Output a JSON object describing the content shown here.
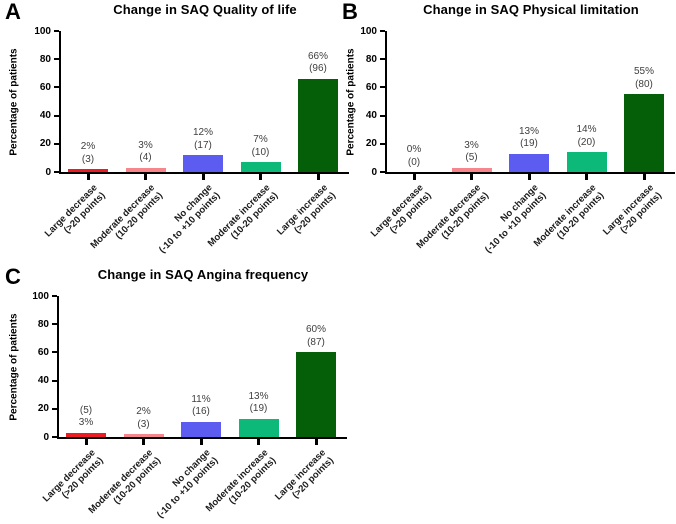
{
  "figure": {
    "background": "#ffffff",
    "axis_color": "#000000",
    "value_label_color": "#404040",
    "panel_letters": [
      "A",
      "B",
      "C"
    ]
  },
  "chart_data": [
    {
      "type": "bar",
      "panel_label": "A",
      "title": "Change in SAQ Quality of life",
      "xlabel": "",
      "ylabel": "Percentage of patients",
      "ylim": [
        0,
        100
      ],
      "yticks": [
        0,
        20,
        40,
        60,
        80,
        100
      ],
      "grid": false,
      "legend": false,
      "categories": [
        "Large decrease (>20 points)",
        "Moderate decrease (10-20 points)",
        "No change (-10 to +10 points)",
        "Moderate increase (10-20 points)",
        "Large increase (>20 points)"
      ],
      "category_lines": [
        [
          "Large decrease",
          "(>20 points)"
        ],
        [
          "Moderate decrease",
          "(10-20 points)"
        ],
        [
          "No change",
          "(-10 to +10 points)"
        ],
        [
          "Moderate increase",
          "(10-20 points)"
        ],
        [
          "Large increase",
          "(>20 points)"
        ]
      ],
      "values": [
        2,
        3,
        12,
        7,
        66
      ],
      "counts": [
        3,
        4,
        17,
        10,
        96
      ],
      "bar_labels": [
        [
          "2%",
          "(3)"
        ],
        [
          "3%",
          "(4)"
        ],
        [
          "12%",
          "(17)"
        ],
        [
          "7%",
          "(10)"
        ],
        [
          "66%",
          "(96)"
        ]
      ],
      "colors": [
        "#ed1c24",
        "#f6868b",
        "#5c5cf0",
        "#0db978",
        "#055e08"
      ]
    },
    {
      "type": "bar",
      "panel_label": "B",
      "title": "Change in SAQ Physical limitation",
      "xlabel": "",
      "ylabel": "Percentage of patients",
      "ylim": [
        0,
        100
      ],
      "yticks": [
        0,
        20,
        40,
        60,
        80,
        100
      ],
      "grid": false,
      "legend": false,
      "categories": [
        "Large decrease (>20 points)",
        "Moderate decrease (10-20 points)",
        "No change (-10 to +10 points)",
        "Moderate increase (10-20 points)",
        "Large increase (>20 points)"
      ],
      "category_lines": [
        [
          "Large decrease",
          "(>20 points)"
        ],
        [
          "Moderate decrease",
          "(10-20 points)"
        ],
        [
          "No change",
          "(-10 to +10 points)"
        ],
        [
          "Moderate increase",
          "(10-20 points)"
        ],
        [
          "Large increase",
          "(>20 points)"
        ]
      ],
      "values": [
        0,
        3,
        13,
        14,
        55
      ],
      "counts": [
        0,
        5,
        19,
        20,
        80
      ],
      "bar_labels": [
        [
          "0%",
          "(0)"
        ],
        [
          "3%",
          "(5)"
        ],
        [
          "13%",
          "(19)"
        ],
        [
          "14%",
          "(20)"
        ],
        [
          "55%",
          "(80)"
        ]
      ],
      "colors": [
        "#ed1c24",
        "#f6868b",
        "#5c5cf0",
        "#0db978",
        "#055e08"
      ]
    },
    {
      "type": "bar",
      "panel_label": "C",
      "title": "Change in SAQ Angina frequency",
      "xlabel": "",
      "ylabel": "Percentage of patients",
      "ylim": [
        0,
        100
      ],
      "yticks": [
        0,
        20,
        40,
        60,
        80,
        100
      ],
      "grid": false,
      "legend": false,
      "categories": [
        "Large decrease (>20 points)",
        "Moderate decrease (10-20 points)",
        "No change (-10 to +10 points)",
        "Moderate increase (10-20 points)",
        "Large increase (>20 points)"
      ],
      "category_lines": [
        [
          "Large decrease",
          "(>20 points)"
        ],
        [
          "Moderate decrease",
          "(10-20 points)"
        ],
        [
          "No change",
          "(-10 to +10 points)"
        ],
        [
          "Moderate increase",
          "(10-20 points)"
        ],
        [
          "Large increase",
          "(>20 points)"
        ]
      ],
      "values": [
        3,
        2,
        11,
        13,
        60
      ],
      "counts": [
        5,
        3,
        16,
        19,
        87
      ],
      "bar_labels": [
        [
          "(5)",
          "3%"
        ],
        [
          "2%",
          "(3)"
        ],
        [
          "11%",
          "(16)"
        ],
        [
          "13%",
          "(19)"
        ],
        [
          "60%",
          "(87)"
        ]
      ],
      "colors": [
        "#ed1c24",
        "#f6868b",
        "#5c5cf0",
        "#0db978",
        "#055e08"
      ]
    }
  ]
}
